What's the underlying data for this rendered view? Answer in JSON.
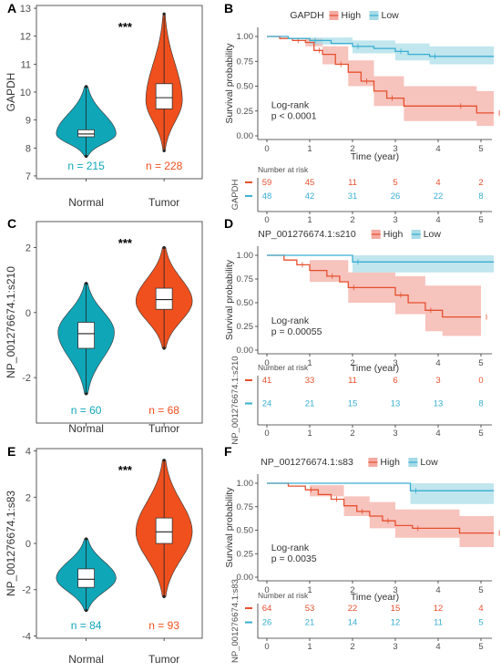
{
  "colors": {
    "normal": "#0fa6b8",
    "tumor": "#f0501e",
    "high": "#e5502e",
    "low": "#39aed2",
    "high_fill": "#f4a9a1",
    "low_fill": "#a6dbe7"
  },
  "chart_data": [
    {
      "panel": "A",
      "type": "violin",
      "ylabel": "GAPDH",
      "ylim": [
        6.9,
        13.1
      ],
      "yticks": [
        7,
        8,
        9,
        10,
        11,
        12,
        13
      ],
      "categories": [
        "Normal",
        "Tumor"
      ],
      "n_labels": [
        "n = 215",
        "n = 228"
      ],
      "significance": "***",
      "groups": [
        {
          "name": "Normal",
          "min": 7.7,
          "q1": 8.4,
          "median": 8.5,
          "q3": 8.65,
          "max": 10.2,
          "mode": 8.5,
          "halfwidth": 0.9
        },
        {
          "name": "Tumor",
          "min": 7.9,
          "q1": 9.4,
          "median": 9.8,
          "q3": 10.3,
          "max": 12.8,
          "mode": 9.7,
          "halfwidth": 0.55
        }
      ]
    },
    {
      "panel": "B",
      "type": "km",
      "title": "GAPDH",
      "legend": [
        "High",
        "Low"
      ],
      "xlabel": "Time (year)",
      "ylabel": "Survival probability",
      "xticks": [
        0,
        1,
        2,
        3,
        4,
        5
      ],
      "yticks": [
        "0.00",
        "0.25",
        "0.50",
        "0.75",
        "1.00"
      ],
      "annotation": [
        "Log-rank",
        "p < 0.0001"
      ],
      "risk_title": "Number at risk",
      "risk_ylabel": "GAPDH",
      "risk": {
        "High": [
          "59",
          "45",
          "11",
          "5",
          "4",
          "2"
        ],
        "Low": [
          "48",
          "42",
          "31",
          "26",
          "22",
          "8"
        ]
      },
      "series": [
        {
          "name": "High",
          "steps": [
            [
              0,
              1
            ],
            [
              0.3,
              0.98
            ],
            [
              0.6,
              0.96
            ],
            [
              0.9,
              0.94
            ],
            [
              1.1,
              0.86
            ],
            [
              1.3,
              0.82
            ],
            [
              1.6,
              0.72
            ],
            [
              1.9,
              0.64
            ],
            [
              2.2,
              0.55
            ],
            [
              2.5,
              0.45
            ],
            [
              2.8,
              0.38
            ],
            [
              3.2,
              0.3
            ],
            [
              4.4,
              0.3
            ],
            [
              4.9,
              0.23
            ],
            [
              5.3,
              0.23
            ]
          ],
          "band": [
            [
              0,
              1,
              1
            ],
            [
              0.9,
              0.9,
              0.98
            ],
            [
              1.3,
              0.72,
              0.9
            ],
            [
              1.9,
              0.5,
              0.76
            ],
            [
              2.5,
              0.3,
              0.6
            ],
            [
              3.2,
              0.15,
              0.5
            ],
            [
              4.4,
              0.15,
              0.5
            ],
            [
              4.9,
              0.1,
              0.45
            ],
            [
              5.3,
              0.1,
              0.45
            ]
          ]
        },
        {
          "name": "Low",
          "steps": [
            [
              0,
              1
            ],
            [
              0.5,
              0.98
            ],
            [
              1,
              0.96
            ],
            [
              1.5,
              0.93
            ],
            [
              2,
              0.9
            ],
            [
              2.5,
              0.88
            ],
            [
              3,
              0.85
            ],
            [
              3.3,
              0.82
            ],
            [
              3.8,
              0.8
            ],
            [
              5.3,
              0.8
            ]
          ],
          "band": [
            [
              0,
              1,
              1
            ],
            [
              1,
              0.92,
              0.99
            ],
            [
              2,
              0.83,
              0.96
            ],
            [
              3,
              0.76,
              0.93
            ],
            [
              3.8,
              0.72,
              0.9
            ],
            [
              5.3,
              0.72,
              0.9
            ]
          ]
        }
      ]
    },
    {
      "panel": "C",
      "type": "violin",
      "ylabel": "NP_001276674.1:s210",
      "ylim": [
        -3.4,
        2.8
      ],
      "yticks": [
        -2,
        0,
        2
      ],
      "categories": [
        "Normal",
        "Tumor"
      ],
      "n_labels": [
        "n = 60",
        "n = 68"
      ],
      "significance": "***",
      "groups": [
        {
          "name": "Normal",
          "min": -2.5,
          "q1": -1.1,
          "median": -0.65,
          "q3": -0.3,
          "max": 0.9,
          "mode": -0.6,
          "halfwidth": 0.85
        },
        {
          "name": "Tumor",
          "min": -1.1,
          "q1": 0.1,
          "median": 0.4,
          "q3": 0.75,
          "max": 2.0,
          "mode": 0.35,
          "halfwidth": 0.85
        }
      ]
    },
    {
      "panel": "D",
      "type": "km",
      "title": "NP_001276674.1:s210",
      "legend": [
        "High",
        "Low"
      ],
      "xlabel": "Time (year)",
      "ylabel": "Survival probability",
      "xticks": [
        0,
        1,
        2,
        3,
        4,
        5
      ],
      "yticks": [
        "0.00",
        "0.25",
        "0.50",
        "0.75",
        "1.00"
      ],
      "annotation": [
        "Log-rank",
        "p = 0.00055"
      ],
      "risk_title": "Number at risk",
      "risk_ylabel": "NP_001276674.1:s210",
      "risk": {
        "High": [
          "41",
          "33",
          "11",
          "6",
          "3",
          "0"
        ],
        "Low": [
          "24",
          "21",
          "15",
          "13",
          "13",
          "8"
        ]
      },
      "series": [
        {
          "name": "High",
          "steps": [
            [
              0,
              1
            ],
            [
              0.4,
              0.95
            ],
            [
              0.7,
              0.9
            ],
            [
              1,
              0.84
            ],
            [
              1.4,
              0.78
            ],
            [
              1.7,
              0.72
            ],
            [
              1.9,
              0.66
            ],
            [
              2.8,
              0.66
            ],
            [
              3,
              0.58
            ],
            [
              3.3,
              0.5
            ],
            [
              3.7,
              0.42
            ],
            [
              4.1,
              0.35
            ],
            [
              5,
              0.35
            ]
          ],
          "band": [
            [
              0,
              1,
              1
            ],
            [
              1,
              0.72,
              0.95
            ],
            [
              1.9,
              0.5,
              0.82
            ],
            [
              3,
              0.38,
              0.78
            ],
            [
              3.7,
              0.2,
              0.68
            ],
            [
              4.1,
              0.15,
              0.68
            ],
            [
              5,
              0.15,
              0.68
            ]
          ]
        },
        {
          "name": "Low",
          "steps": [
            [
              0,
              1
            ],
            [
              1.9,
              1
            ],
            [
              2,
              0.93
            ],
            [
              5.3,
              0.93
            ]
          ],
          "band": [
            [
              0,
              1,
              1
            ],
            [
              2,
              0.82,
              1
            ],
            [
              5.3,
              0.82,
              1
            ]
          ]
        }
      ]
    },
    {
      "panel": "E",
      "type": "violin",
      "ylabel": "NP_001276674.1:s83",
      "ylim": [
        -4.1,
        4.1
      ],
      "yticks": [
        -4,
        -2,
        0,
        2,
        4
      ],
      "categories": [
        "Normal",
        "Tumor"
      ],
      "n_labels": [
        "n = 84",
        "n = 93"
      ],
      "significance": "***",
      "groups": [
        {
          "name": "Normal",
          "min": -2.9,
          "q1": -1.9,
          "median": -1.55,
          "q3": -1.1,
          "max": 0.2,
          "mode": -1.5,
          "halfwidth": 0.9
        },
        {
          "name": "Tumor",
          "min": -2.3,
          "q1": 0.0,
          "median": 0.5,
          "q3": 1.1,
          "max": 3.6,
          "mode": 0.5,
          "halfwidth": 0.85
        }
      ]
    },
    {
      "panel": "F",
      "type": "km",
      "title": "NP_001276674.1:s83",
      "legend": [
        "High",
        "Low"
      ],
      "xlabel": "Time (year)",
      "ylabel": "Survival probability",
      "xticks": [
        0,
        1,
        2,
        3,
        4,
        5
      ],
      "yticks": [
        "0.00",
        "0.25",
        "0.50",
        "0.75",
        "1.00"
      ],
      "annotation": [
        "Log-rank",
        "p = 0.0035"
      ],
      "risk_title": "Number at risk",
      "risk_ylabel": "NP_001276674.1:s83",
      "risk": {
        "High": [
          "64",
          "53",
          "22",
          "15",
          "12",
          "4"
        ],
        "Low": [
          "26",
          "21",
          "14",
          "12",
          "11",
          "5"
        ]
      },
      "series": [
        {
          "name": "High",
          "steps": [
            [
              0,
              1
            ],
            [
              0.5,
              0.97
            ],
            [
              0.9,
              0.93
            ],
            [
              1.2,
              0.88
            ],
            [
              1.5,
              0.83
            ],
            [
              1.8,
              0.76
            ],
            [
              2.1,
              0.7
            ],
            [
              2.4,
              0.65
            ],
            [
              2.7,
              0.6
            ],
            [
              3,
              0.55
            ],
            [
              3.4,
              0.52
            ],
            [
              4.5,
              0.47
            ],
            [
              5.3,
              0.47
            ]
          ],
          "band": [
            [
              0,
              1,
              1
            ],
            [
              1,
              0.86,
              0.98
            ],
            [
              1.8,
              0.65,
              0.86
            ],
            [
              2.4,
              0.52,
              0.8
            ],
            [
              3,
              0.42,
              0.72
            ],
            [
              4.5,
              0.32,
              0.65
            ],
            [
              5.3,
              0.32,
              0.65
            ]
          ]
        },
        {
          "name": "Low",
          "steps": [
            [
              0,
              1
            ],
            [
              3.3,
              1
            ],
            [
              3.35,
              0.92
            ],
            [
              5.3,
              0.92
            ]
          ],
          "band": [
            [
              0,
              1,
              1
            ],
            [
              3.35,
              0.78,
              1
            ],
            [
              5.3,
              0.78,
              1
            ]
          ]
        }
      ]
    }
  ]
}
